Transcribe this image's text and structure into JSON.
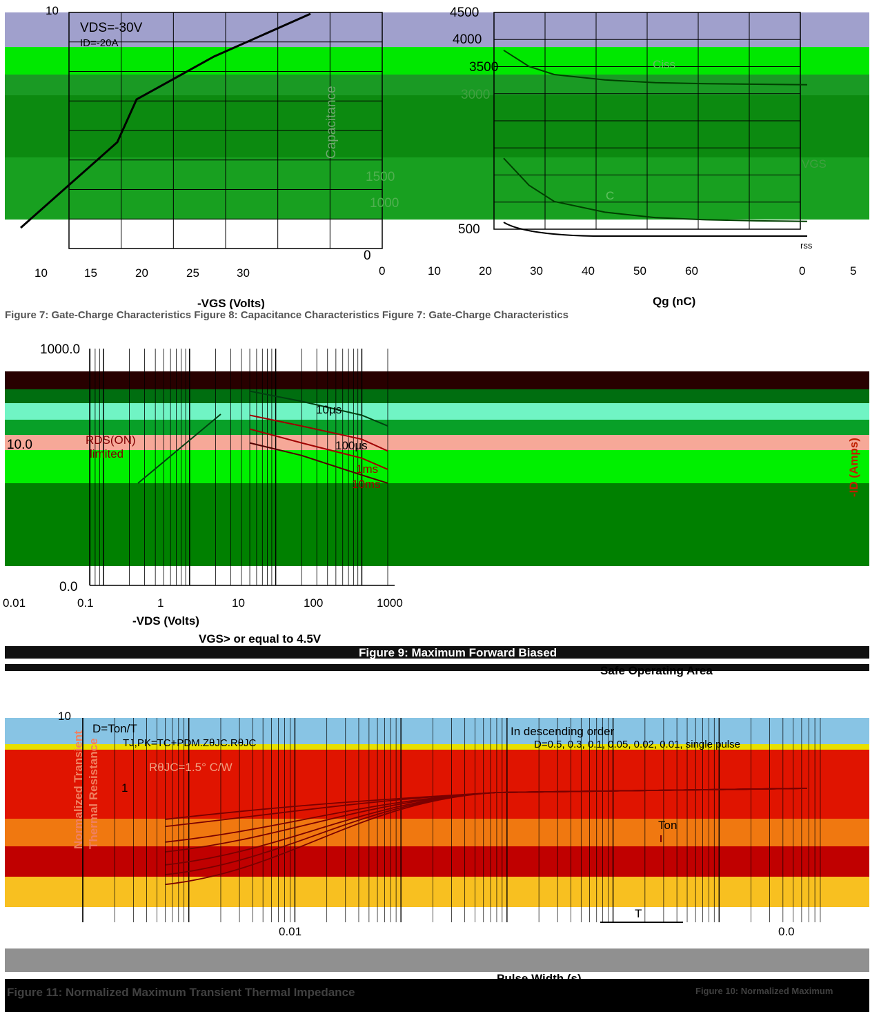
{
  "colors": {
    "lavender": "#a0a0cc",
    "bright_green": "#00f000",
    "green": "#0f8f1f",
    "dark_green": "#008000",
    "maroon": "#280000",
    "aqua": "#60f0c0",
    "salmon": "#f4a090",
    "light_blue": "#80c0e0",
    "red": "#e01000",
    "orange": "#f07010",
    "gold": "#f8c020",
    "gray": "#909090",
    "black": "#000000"
  },
  "panel1": {
    "y_top_tick": "10",
    "annot_vds": "VDS=-30V",
    "annot_id": "ID=-20A",
    "x_ticks": [
      "10",
      "15",
      "20",
      "25",
      "30"
    ],
    "x_label": "-VGS (Volts)"
  },
  "panel2": {
    "y_ticks": [
      "4500",
      "4000",
      "3500",
      "3000",
      "1500",
      "1000",
      "500",
      "0"
    ],
    "y_label": "Capacitance",
    "ciss": "Ciss",
    "coss": "C",
    "crss": "rss",
    "x_ticks": [
      "0",
      "10",
      "20",
      "30",
      "40",
      "50",
      "60"
    ],
    "x_label": "Qg (nC)"
  },
  "panel3": {
    "x_ticks": [
      "0",
      "5"
    ],
    "y_label": "-ID (Amps)",
    "vgs_note": "VGS"
  },
  "caption_row1": "Figure 7: Gate-Charge Characteristics    Figure 8: Capacitance Characteristics    Figure 7: Gate-Charge Characteristics",
  "soa": {
    "y_ticks": [
      "1000.0",
      "10.0",
      "0.0"
    ],
    "x_ticks": [
      "0.01",
      "0.1",
      "1",
      "10",
      "100",
      "1000"
    ],
    "limit_label1": "RDS(ON)",
    "limit_label2": "limited",
    "labels": [
      "10μs",
      "100μs",
      "1ms",
      "10ms"
    ],
    "x_label": "-VDS (Volts)",
    "footnote": "VGS> or equal to 4.5V",
    "caption1": "Figure 9: Maximum Forward Biased",
    "caption2": "Safe Operating Area"
  },
  "thermal": {
    "y_top": "10",
    "y_one": "1",
    "duty": "D=Ton/T",
    "tj_formula": "TJ,PK=TC+PDM.ZθJC.RθJC",
    "rjc": "RθJC=1.5° C/W",
    "legend1": "In descending order",
    "legend2": "D=0.5, 0.3, 0.1, 0.05, 0.02, 0.01, single pulse",
    "y_label1": "Normalized Transient",
    "y_label2": "Thermal Resistance",
    "ton": "Ton",
    "t_label": "T",
    "x_tick_mid": "0.01",
    "x_right": "0.0",
    "x_label": "Pulse Width (s)",
    "caption": "Figure 11: Normalized Maximum Transient Thermal Impedance",
    "caption_right": "Figure 10: Normalized Maximum"
  },
  "chart_data": [
    {
      "type": "line",
      "title": "",
      "xlabel": "-VGS (Volts)",
      "ylabel": "",
      "x_ticks": [
        10,
        15,
        20,
        25,
        30
      ],
      "y_top": 10,
      "series": [
        {
          "x": [
            0,
            5,
            10,
            12,
            20,
            30
          ],
          "y": [
            0,
            2,
            4,
            6,
            8,
            10
          ]
        }
      ]
    },
    {
      "type": "line",
      "title": "",
      "xlabel": "Qg (nC)",
      "ylabel": "Capacitance",
      "ylim": [
        0,
        4500
      ],
      "x_ticks": [
        0,
        10,
        20,
        30,
        40,
        50,
        60
      ],
      "series": [
        {
          "name": "Ciss",
          "x": [
            0,
            5,
            10,
            20,
            30,
            40,
            50,
            60
          ],
          "y": [
            3800,
            3500,
            3350,
            3250,
            3200,
            3180,
            3170,
            3160
          ]
        },
        {
          "name": "C",
          "x": [
            0,
            5,
            10,
            20,
            30,
            40,
            50,
            60
          ],
          "y": [
            1800,
            1300,
            1000,
            800,
            700,
            660,
            640,
            630
          ]
        }
      ]
    },
    {
      "type": "line",
      "title": "",
      "xlabel": "-VDS (Volts)",
      "ylabel": "",
      "x_scale": "log",
      "y_ticks": [
        1000.0,
        10.0,
        0.0
      ],
      "series": [
        {
          "name": "10μs",
          "x": [
            5,
            20,
            100,
            200
          ],
          "y": [
            200,
            120,
            60,
            35
          ]
        },
        {
          "name": "100μs",
          "x": [
            5,
            20,
            100,
            200
          ],
          "y": [
            60,
            35,
            18,
            10
          ]
        },
        {
          "name": "1ms",
          "x": [
            5,
            20,
            100,
            200
          ],
          "y": [
            30,
            15,
            7,
            4
          ]
        },
        {
          "name": "10ms",
          "x": [
            5,
            20,
            100,
            200
          ],
          "y": [
            15,
            8,
            3,
            2
          ]
        }
      ]
    },
    {
      "type": "line",
      "title": "",
      "xlabel": "Pulse Width (s)",
      "ylabel": "Normalized Transient Thermal Resistance",
      "x_scale": "log",
      "y_scale": "log",
      "series": [
        {
          "name": "D=0.5",
          "y_end": 0.5
        },
        {
          "name": "0.3",
          "y_end": 0.3
        },
        {
          "name": "0.1",
          "y_end": 0.1
        },
        {
          "name": "0.05",
          "y_end": 0.05
        },
        {
          "name": "0.02",
          "y_end": 0.02
        },
        {
          "name": "0.01",
          "y_end": 0.01
        },
        {
          "name": "single pulse",
          "y_end": 0.005
        }
      ]
    }
  ]
}
